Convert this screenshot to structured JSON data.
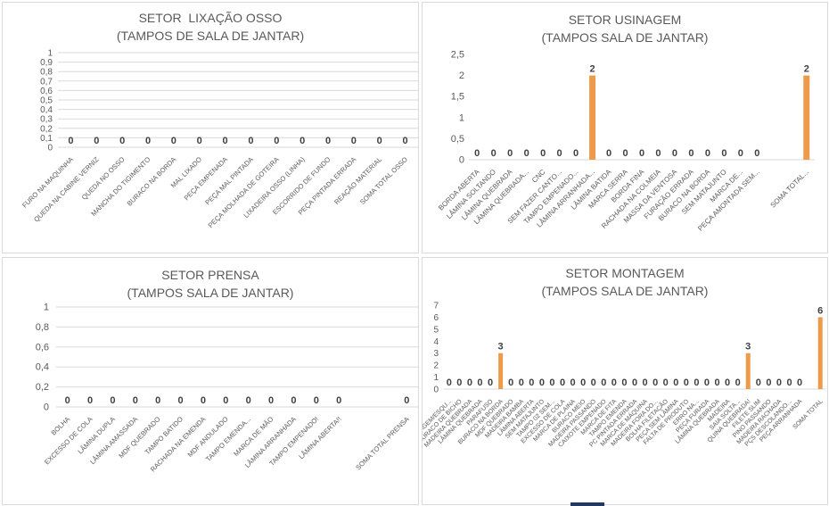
{
  "colors": {
    "bar": "#ed9b4a",
    "grid": "#d9d9d9",
    "text": "#595959",
    "border": "#d9d9d9"
  },
  "chart_data": [
    {
      "type": "bar",
      "title": "SETOR  LIXAÇÃO OSSO",
      "subtitle": "(TAMPOS DE SALA DE JANTAR)",
      "y_ticks": [
        "1",
        "0,9",
        "0,8",
        "0,7",
        "0,6",
        "0,5",
        "0,4",
        "0,3",
        "0,2",
        "0,1",
        "0"
      ],
      "ylim": [
        0,
        1
      ],
      "grid": true,
      "categories": [
        "FURO NA MAQUINHA",
        "QUEDA NA CABINE VERNIZ",
        "QUEDA NO OSSO",
        "MANCHA DO TIGIMENTO",
        "BURACO NA BORDA",
        "MAL LIXADO",
        "PEÇA EMPENADA",
        "PEÇA MAL PINTADA",
        "PEÇA MOLHADA DE GOTEIRA",
        "LIXADEIRA OSSO (LINHA)",
        "ESCORRIDO DE FUNDO",
        "PEÇA PINTADA ERRADA",
        "REAÇÃO MATERIAL",
        "SOMA TOTAL OSSO"
      ],
      "values": [
        0,
        0,
        0,
        0,
        0,
        0,
        0,
        0,
        0,
        0,
        0,
        0,
        0,
        0
      ]
    },
    {
      "type": "bar",
      "title": "SETOR USINAGEM",
      "subtitle": "(TAMPOS SALA DE JANTAR)",
      "y_ticks": [
        "2,5",
        "2",
        "1,5",
        "1",
        "0,5",
        "0"
      ],
      "ylim": [
        0,
        2.5
      ],
      "grid": false,
      "categories": [
        "BORDA ABERTA",
        "LÂMINA SOLTANDO",
        "LÂMINA QUEBRADA",
        "LÂMINA QUEBRADA...",
        "CNC",
        "SEM FAZER CANTO...",
        "TAMPO EMPENADO...",
        "LÂMINA ARRANHADA...",
        "LÂMINA BATIDA",
        "MARCA SERRA",
        "BORDA FINA",
        "RACHADA NA COLMEIA",
        "MASSA DA VENTOSA",
        "FURAÇÃO ERRADA",
        "BURACO NA BORDA",
        "SEM MATAJUNTO",
        "MARCA DE...",
        "PEÇA AMONTADA SEM...",
        "",
        "",
        "SOMA TOTAL..."
      ],
      "values": [
        0,
        0,
        0,
        0,
        0,
        0,
        0,
        2,
        0,
        0,
        0,
        0,
        0,
        0,
        0,
        0,
        0,
        0,
        null,
        null,
        2
      ]
    },
    {
      "type": "bar",
      "title": "SETOR PRENSA",
      "subtitle": "(TAMPOS SALA DE JANTAR)",
      "y_ticks": [
        "1",
        "0,8",
        "0,6",
        "0,4",
        "0,2",
        "0"
      ],
      "ylim": [
        0,
        1
      ],
      "grid": true,
      "categories": [
        "BOLHA",
        "EXCESSO DE COLA",
        "LÂMINA DUPLA",
        "LÂMINA AMASSADA",
        "MDF QUEBRADO",
        "TAMPO BATIDO",
        "RACHADA NA EMENDA",
        "MDF ANDULADO",
        "TAMPO EMENDA...",
        "MARCA DE MÃO",
        "LÂMINA ARRANHADA",
        "TAMPO EMPENADO!",
        "LÂMINA ABERTA!!",
        "",
        "",
        "SOMA TOTAL PRENSA"
      ],
      "values": [
        0,
        0,
        0,
        0,
        0,
        0,
        0,
        0,
        0,
        0,
        0,
        0,
        0,
        null,
        null,
        0
      ]
    },
    {
      "type": "bar",
      "title": "SETOR MONTAGEM",
      "subtitle": "(TAMPOS SALA DE JANTAR)",
      "y_ticks": [
        "7",
        "6",
        "5",
        "4",
        "3",
        "2",
        "1",
        "0"
      ],
      "ylim": [
        0,
        7
      ],
      "grid": false,
      "categories": [
        "MONTAGEM/ESQU...",
        "BURACO DE BICHO",
        "MADEIRA QUEBRADA",
        "LÂMINA QUEBRADA",
        "PARAFUSO",
        "BURACO NA BORDA",
        "MDF QUEBRADO",
        "MADEIRA BAMBA",
        "LÂMINA ABERTA",
        "SEM MATAJUNTO",
        "TAMPO 02 SEM...",
        "EXCESSO DE COLA",
        "MARCA DE PLAINA",
        "BURACO MEIO",
        "MADEIRA PASSANDO",
        "CAIXOTE EMPENADO",
        "MARCA DE FITA",
        "TAMPO EMENDA",
        "PC PINTADA ERRADA",
        "MARCA DE MÁQUINA",
        "MADEIRA FORA DO...",
        "BOLHA FILETAÇÃO",
        "PEÇA SEM LÂMINA",
        "FALTA DE PRODUTO",
        "ERRO NA...",
        "PEÇA FURADA",
        "LÂMINA QUEBRADA",
        "MADEIRA",
        "SAIA SOLTA...",
        "QUINA QUEBRADA!",
        "FILETE SLIM",
        "PINO PASSANDO",
        "MADEIRA RACHADA",
        "PÇS DESCOLANDO...",
        "PEÇA ARRANHADA",
        "",
        "SOMA TOTAL"
      ],
      "values": [
        0,
        0,
        0,
        0,
        0,
        3,
        0,
        0,
        0,
        0,
        0,
        0,
        0,
        0,
        0,
        0,
        0,
        0,
        0,
        0,
        0,
        0,
        0,
        0,
        0,
        0,
        0,
        0,
        0,
        3,
        0,
        0,
        0,
        0,
        0,
        null,
        6
      ]
    }
  ]
}
